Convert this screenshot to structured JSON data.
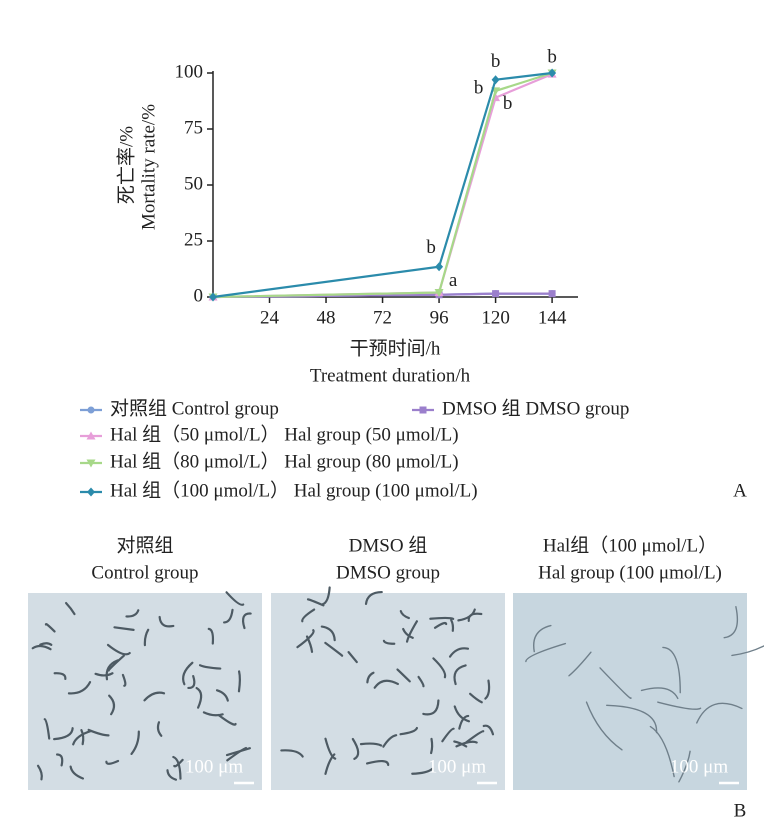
{
  "chart_data": {
    "type": "line",
    "y_label": [
      "死亡率/%",
      "Mortality rate/%"
    ],
    "x_label": [
      "干预时间/h",
      "Treatment duration/h"
    ],
    "x": [
      0,
      96,
      120,
      144
    ],
    "xlim": [
      0,
      155
    ],
    "xticks": [
      24,
      48,
      72,
      96,
      120,
      144
    ],
    "ylim": [
      0,
      100
    ],
    "yticks": [
      0,
      25,
      50,
      75,
      100
    ],
    "series": [
      {
        "name": "对照组 Control group",
        "color": "#7d9fd6",
        "marker": "circle",
        "values": [
          0,
          1,
          1.5,
          1.5
        ]
      },
      {
        "name": "DMSO 组 DMSO group",
        "color": "#9b7fcc",
        "marker": "square",
        "values": [
          0,
          1,
          1.5,
          1.5
        ]
      },
      {
        "name": "Hal 组（50 μmol/L） Hal group (50 μmol/L)",
        "color": "#e79ed9",
        "marker": "triangle",
        "values": [
          0,
          2,
          89,
          99.5
        ]
      },
      {
        "name": "Hal 组（80 μmol/L） Hal group (80 μmol/L)",
        "color": "#a7d889",
        "marker": "triangle-down",
        "values": [
          0,
          2,
          92,
          100
        ]
      },
      {
        "name": "Hal 组（100 μmol/L） Hal group (100 μmol/L)",
        "color": "#2b8bab",
        "marker": "diamond",
        "values": [
          0,
          13.5,
          97,
          100
        ]
      }
    ],
    "annotations": [
      "b",
      "a",
      "b",
      "b",
      "b",
      "b"
    ],
    "panel_label": "A"
  },
  "images": [
    {
      "caption": [
        "对照组",
        "Control group"
      ],
      "scale_bar": "100 μm"
    },
    {
      "caption": [
        "DMSO 组",
        "DMSO group"
      ],
      "scale_bar": "100 μm"
    },
    {
      "caption": [
        "Hal组（100 μmol/L）",
        "Hal group (100 μmol/L)"
      ],
      "scale_bar": "100 μm"
    }
  ],
  "images_panel_label": "B"
}
